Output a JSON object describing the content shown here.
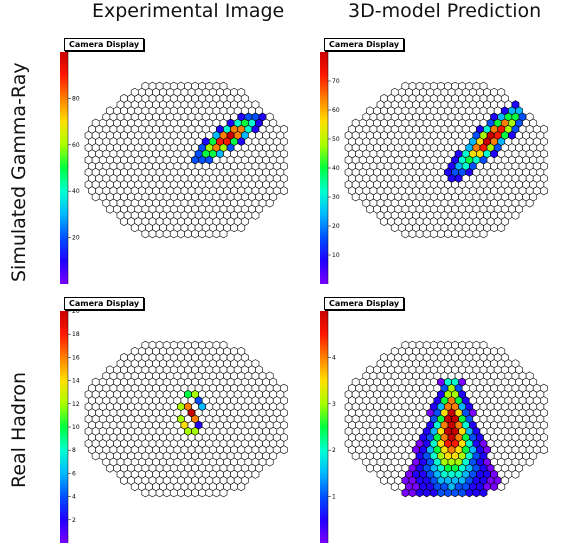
{
  "columns": [
    "Experimental Image",
    "3D-model Prediction"
  ],
  "rows": [
    "Simulated Gamma-Ray",
    "Real Hadron"
  ],
  "panel_title": "Camera Display",
  "colormap": [
    "#7a00ff",
    "#2000ff",
    "#0050ff",
    "#00b8ff",
    "#00ffd0",
    "#00ff40",
    "#a8ff00",
    "#ffe000",
    "#ff8000",
    "#ff1800",
    "#c80000"
  ],
  "chart_data": [
    {
      "type": "heatmap",
      "row": "Simulated Gamma-Ray",
      "column": "Experimental Image",
      "title": "Camera Display",
      "zlim": [
        0,
        100
      ],
      "colorbar_ticks": [
        "20",
        "40",
        "60",
        "80"
      ],
      "shape": "narrow ellipse",
      "center": [
        6,
        -1
      ],
      "major_axis_deg": 40,
      "peak": 90
    },
    {
      "type": "heatmap",
      "row": "Simulated Gamma-Ray",
      "column": "3D-model Prediction",
      "title": "Camera Display",
      "zlim": [
        0,
        80
      ],
      "colorbar_ticks": [
        "10",
        "20",
        "30",
        "40",
        "50",
        "60",
        "70"
      ],
      "shape": "narrow ellipse",
      "center": [
        6,
        -1
      ],
      "major_axis_deg": 45,
      "peak": 75
    },
    {
      "type": "heatmap",
      "row": "Real Hadron",
      "column": "Experimental Image",
      "title": "Camera Display",
      "zlim": [
        0,
        20
      ],
      "colorbar_ticks": [
        "2",
        "4",
        "6",
        "8",
        "10",
        "12",
        "14",
        "16",
        "18",
        "20"
      ],
      "shape": "scattered pixels",
      "peak": 19
    },
    {
      "type": "heatmap",
      "row": "Real Hadron",
      "column": "3D-model Prediction",
      "title": "Camera Display",
      "zlim": [
        0,
        5
      ],
      "colorbar_ticks": [
        "1",
        "2",
        "3",
        "4"
      ],
      "shape": "broad cone",
      "peak": 4.8
    }
  ]
}
